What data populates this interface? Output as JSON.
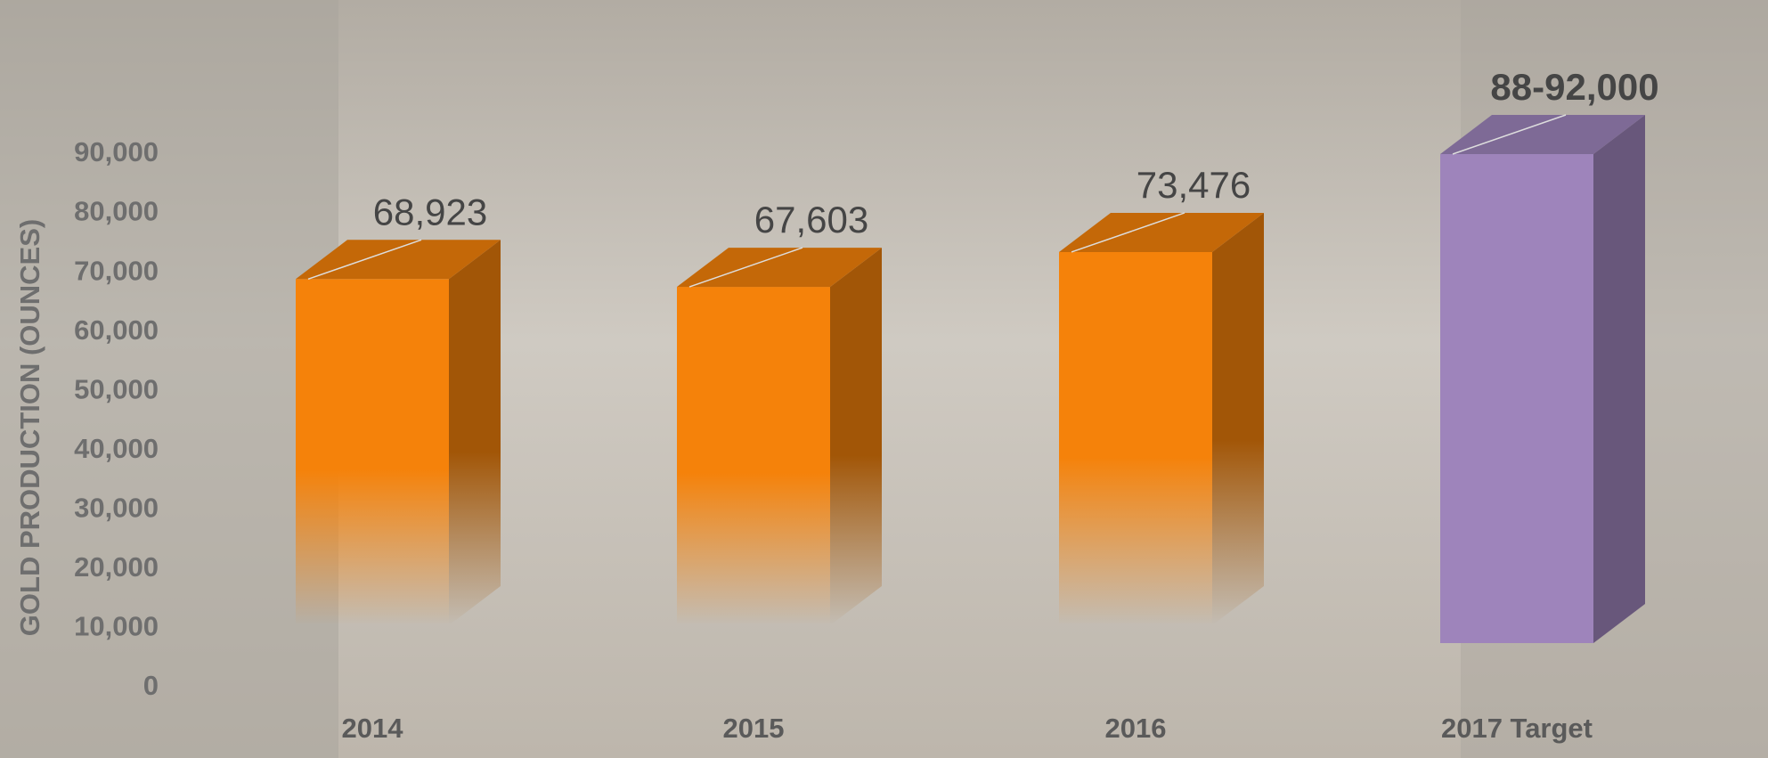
{
  "chart_data": {
    "type": "bar3d",
    "y_label": "GOLD PRODUCTION (OUNCES)",
    "categories": [
      "2014",
      "2015",
      "2016",
      "2017 Target"
    ],
    "values": [
      68923,
      67603,
      73476,
      90000
    ],
    "value_labels": [
      "68,923",
      "67,603",
      "73,476",
      "88-92,000"
    ],
    "colors": [
      "#f5820a",
      "#f5820a",
      "#f5820a",
      "#9e84bb"
    ],
    "ylim": [
      0,
      90000
    ],
    "yticks": [
      0,
      {
        "value": 10000,
        "label": "10,000"
      },
      {
        "value": 20000,
        "label": "20,000"
      },
      {
        "value": 30000,
        "label": "30,000"
      },
      {
        "value": 40000,
        "label": "40,000"
      },
      {
        "value": 50000,
        "label": "50,000"
      },
      {
        "value": 60000,
        "label": "60,000"
      },
      {
        "value": 70000,
        "label": "70,000"
      },
      {
        "value": 80000,
        "label": "80,000"
      },
      {
        "value": 90000,
        "label": "90,000"
      }
    ]
  }
}
